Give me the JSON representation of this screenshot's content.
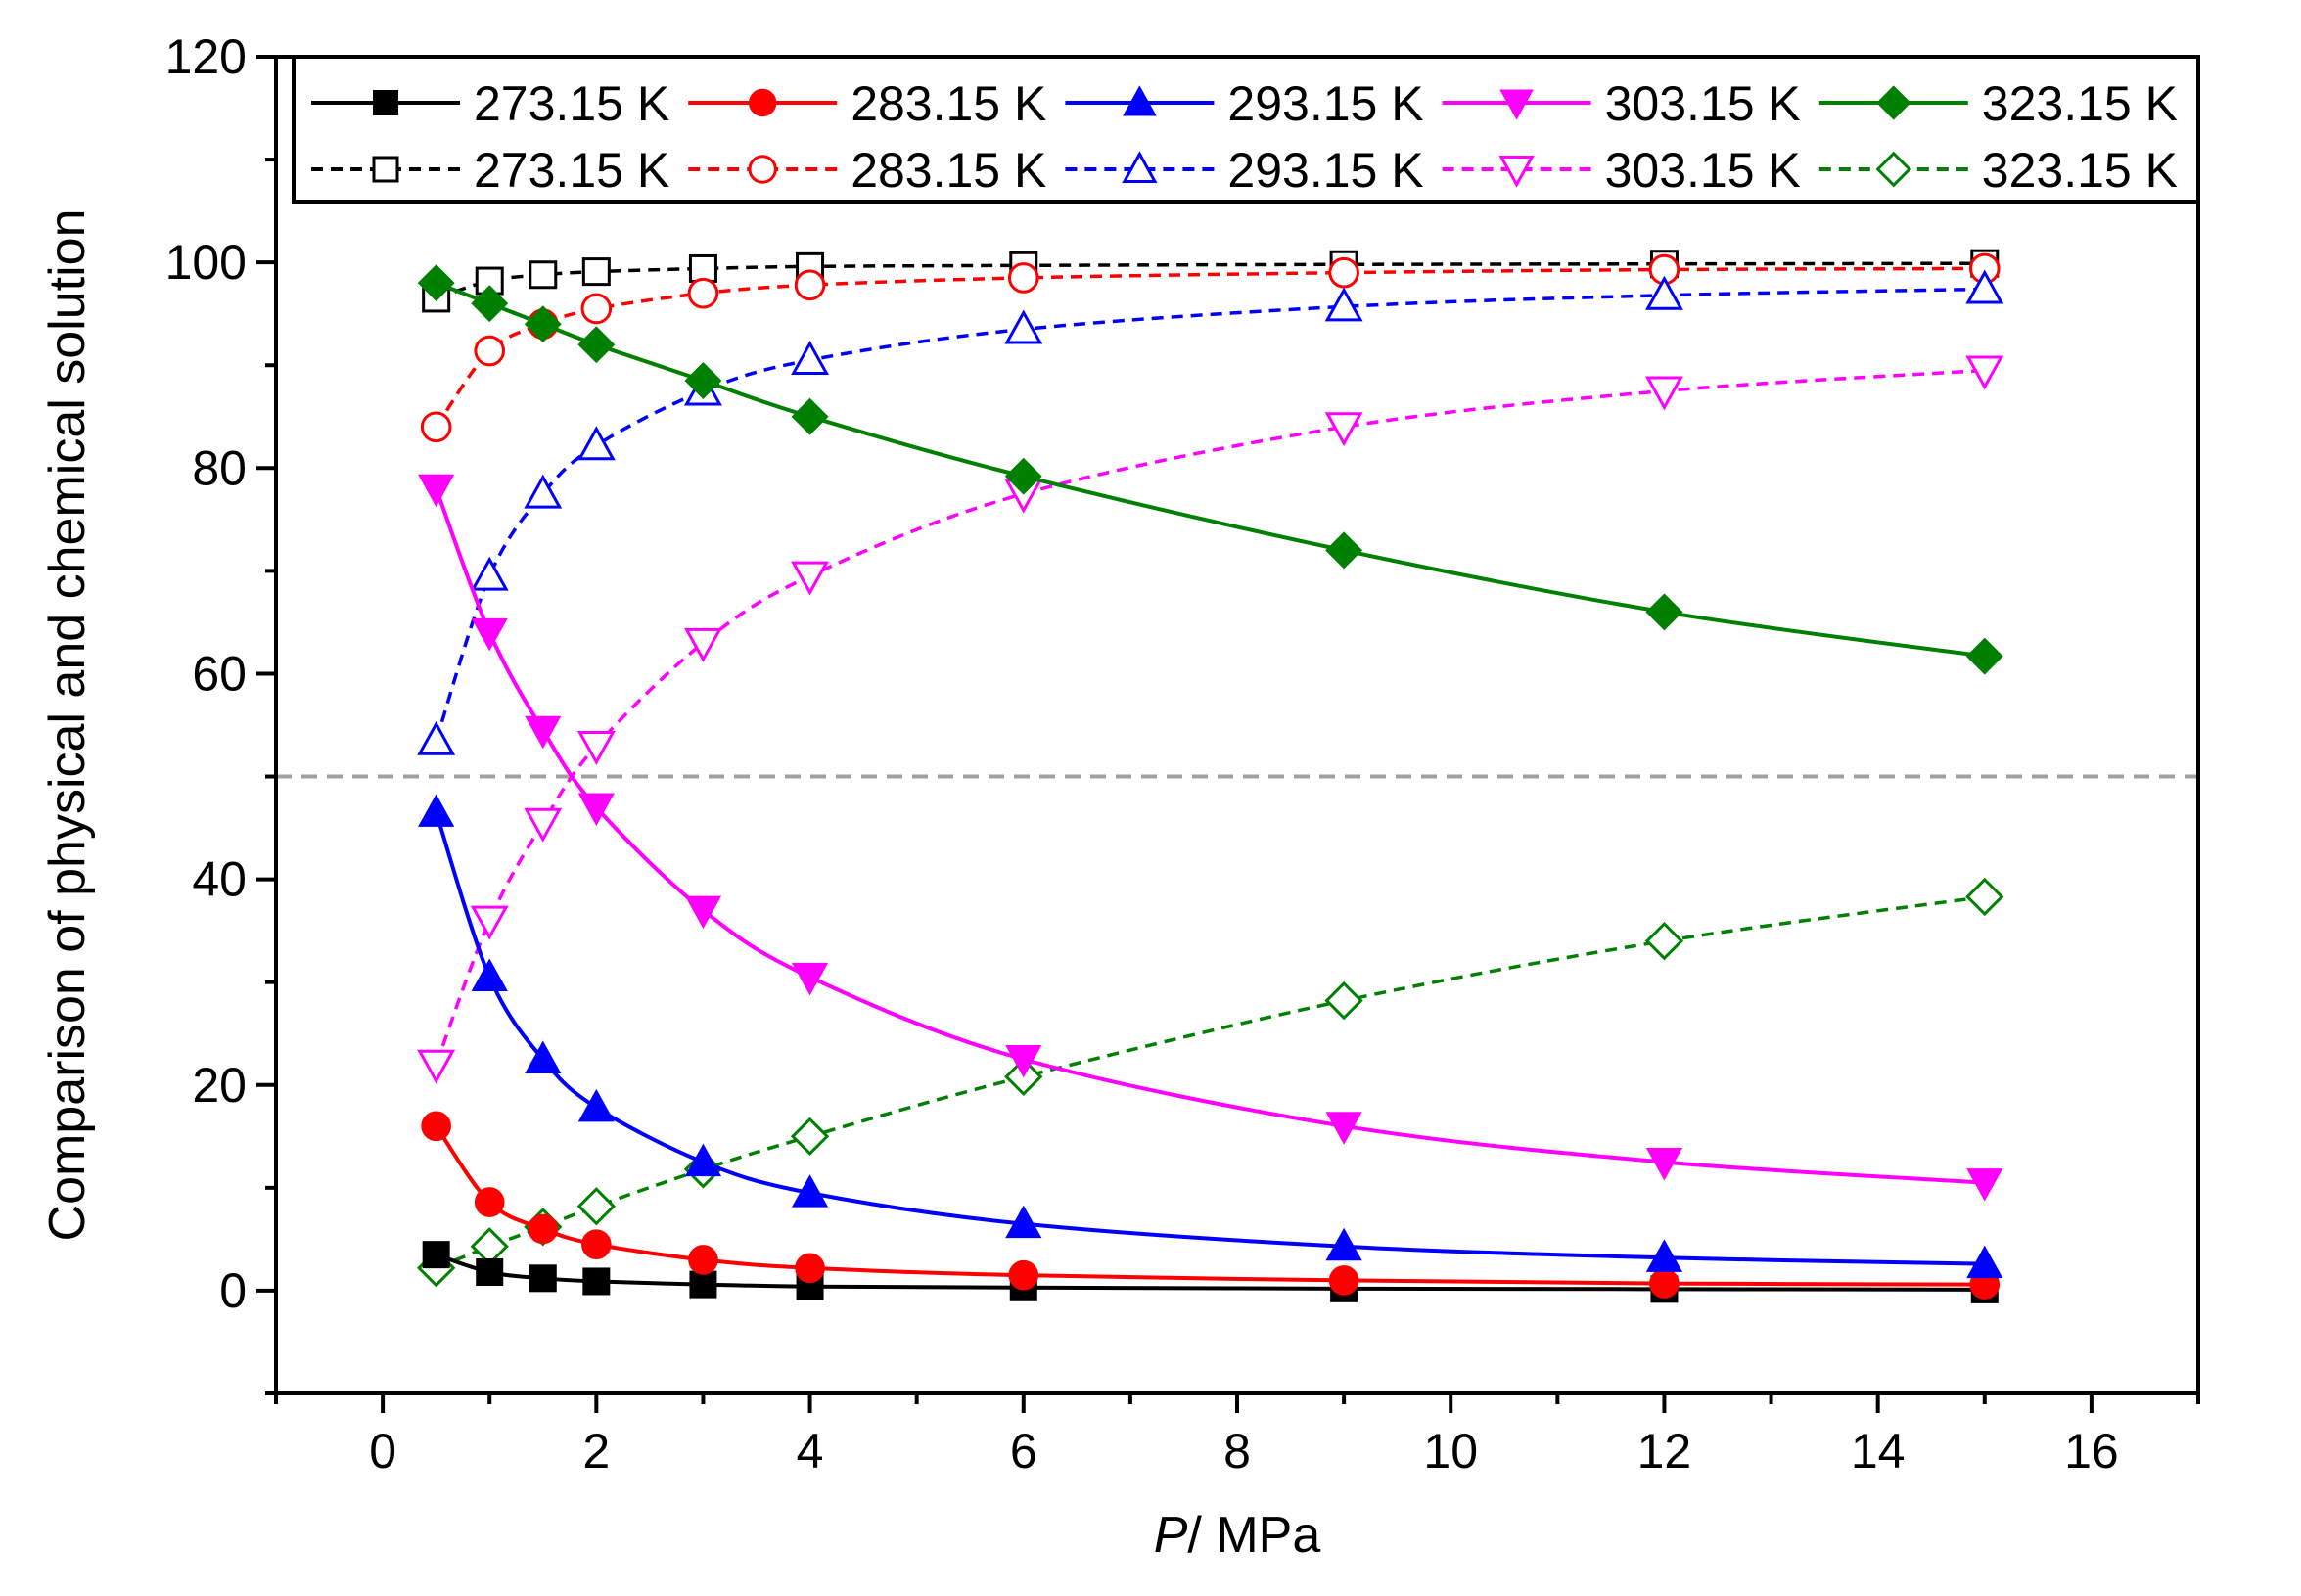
{
  "chart_data": {
    "type": "line",
    "title": "",
    "xlabel_italic": "P",
    "xlabel_rest": "/ MPa",
    "ylabel": "Comparison of physical  and chemical solution",
    "xlim": [
      -1,
      17
    ],
    "ylim": [
      -10,
      120
    ],
    "xticks": [
      0,
      2,
      4,
      6,
      8,
      10,
      12,
      14,
      16
    ],
    "yticks": [
      0,
      20,
      40,
      60,
      80,
      100,
      120
    ],
    "reference_line_y": 50,
    "x": [
      0.5,
      1,
      1.5,
      2,
      3,
      4,
      6,
      9,
      12,
      15
    ],
    "series": [
      {
        "name": "273.15 K",
        "group": "physical",
        "color": "#000000",
        "marker": "square",
        "filled": true,
        "dash": false,
        "values": [
          3.5,
          1.8,
          1.2,
          0.9,
          0.6,
          0.4,
          0.3,
          0.2,
          0.15,
          0.1
        ]
      },
      {
        "name": "283.15 K",
        "group": "physical",
        "color": "#ff0000",
        "marker": "circle",
        "filled": true,
        "dash": false,
        "values": [
          16,
          8.6,
          6.0,
          4.5,
          3.0,
          2.2,
          1.5,
          1.0,
          0.7,
          0.6
        ]
      },
      {
        "name": "293.15 K",
        "group": "physical",
        "color": "#0000ff",
        "marker": "triangle-up",
        "filled": true,
        "dash": false,
        "values": [
          46.5,
          30.5,
          22.5,
          17.8,
          12.5,
          9.5,
          6.5,
          4.3,
          3.2,
          2.6
        ]
      },
      {
        "name": "303.15 K",
        "group": "physical",
        "color": "#ff00ff",
        "marker": "triangle-down",
        "filled": true,
        "dash": false,
        "values": [
          78,
          64,
          54.5,
          47,
          37,
          30.5,
          22.5,
          16,
          12.5,
          10.5
        ]
      },
      {
        "name": "323.15 K",
        "group": "physical",
        "color": "#008000",
        "marker": "diamond",
        "filled": true,
        "dash": false,
        "values": [
          98,
          96,
          94,
          92,
          88.5,
          85,
          79.2,
          72,
          66,
          61.7
        ]
      },
      {
        "name": "273.15 K",
        "group": "chemical",
        "color": "#000000",
        "marker": "square",
        "filled": false,
        "dash": true,
        "values": [
          96.5,
          98.2,
          98.8,
          99.1,
          99.4,
          99.6,
          99.7,
          99.8,
          99.85,
          99.9
        ]
      },
      {
        "name": "283.15 K",
        "group": "chemical",
        "color": "#ff0000",
        "marker": "circle",
        "filled": false,
        "dash": true,
        "values": [
          84,
          91.4,
          94,
          95.5,
          97,
          97.8,
          98.5,
          99,
          99.3,
          99.4
        ]
      },
      {
        "name": "293.15 K",
        "group": "chemical",
        "color": "#0000ff",
        "marker": "triangle-up",
        "filled": false,
        "dash": true,
        "values": [
          53.5,
          69.5,
          77.5,
          82.2,
          87.5,
          90.5,
          93.5,
          95.7,
          96.8,
          97.4
        ]
      },
      {
        "name": "303.15 K",
        "group": "chemical",
        "color": "#ff00ff",
        "marker": "triangle-down",
        "filled": false,
        "dash": true,
        "values": [
          22,
          36,
          45.5,
          53,
          63,
          69.5,
          77.5,
          84,
          87.5,
          89.5
        ]
      },
      {
        "name": "323.15 K",
        "group": "chemical",
        "color": "#008000",
        "marker": "diamond",
        "filled": false,
        "dash": true,
        "values": [
          2.2,
          4.3,
          6.2,
          8.2,
          11.8,
          15,
          20.8,
          28.2,
          34,
          38.3
        ]
      }
    ],
    "legend": {
      "placement": "top",
      "columns": 5,
      "rows": 2
    }
  }
}
